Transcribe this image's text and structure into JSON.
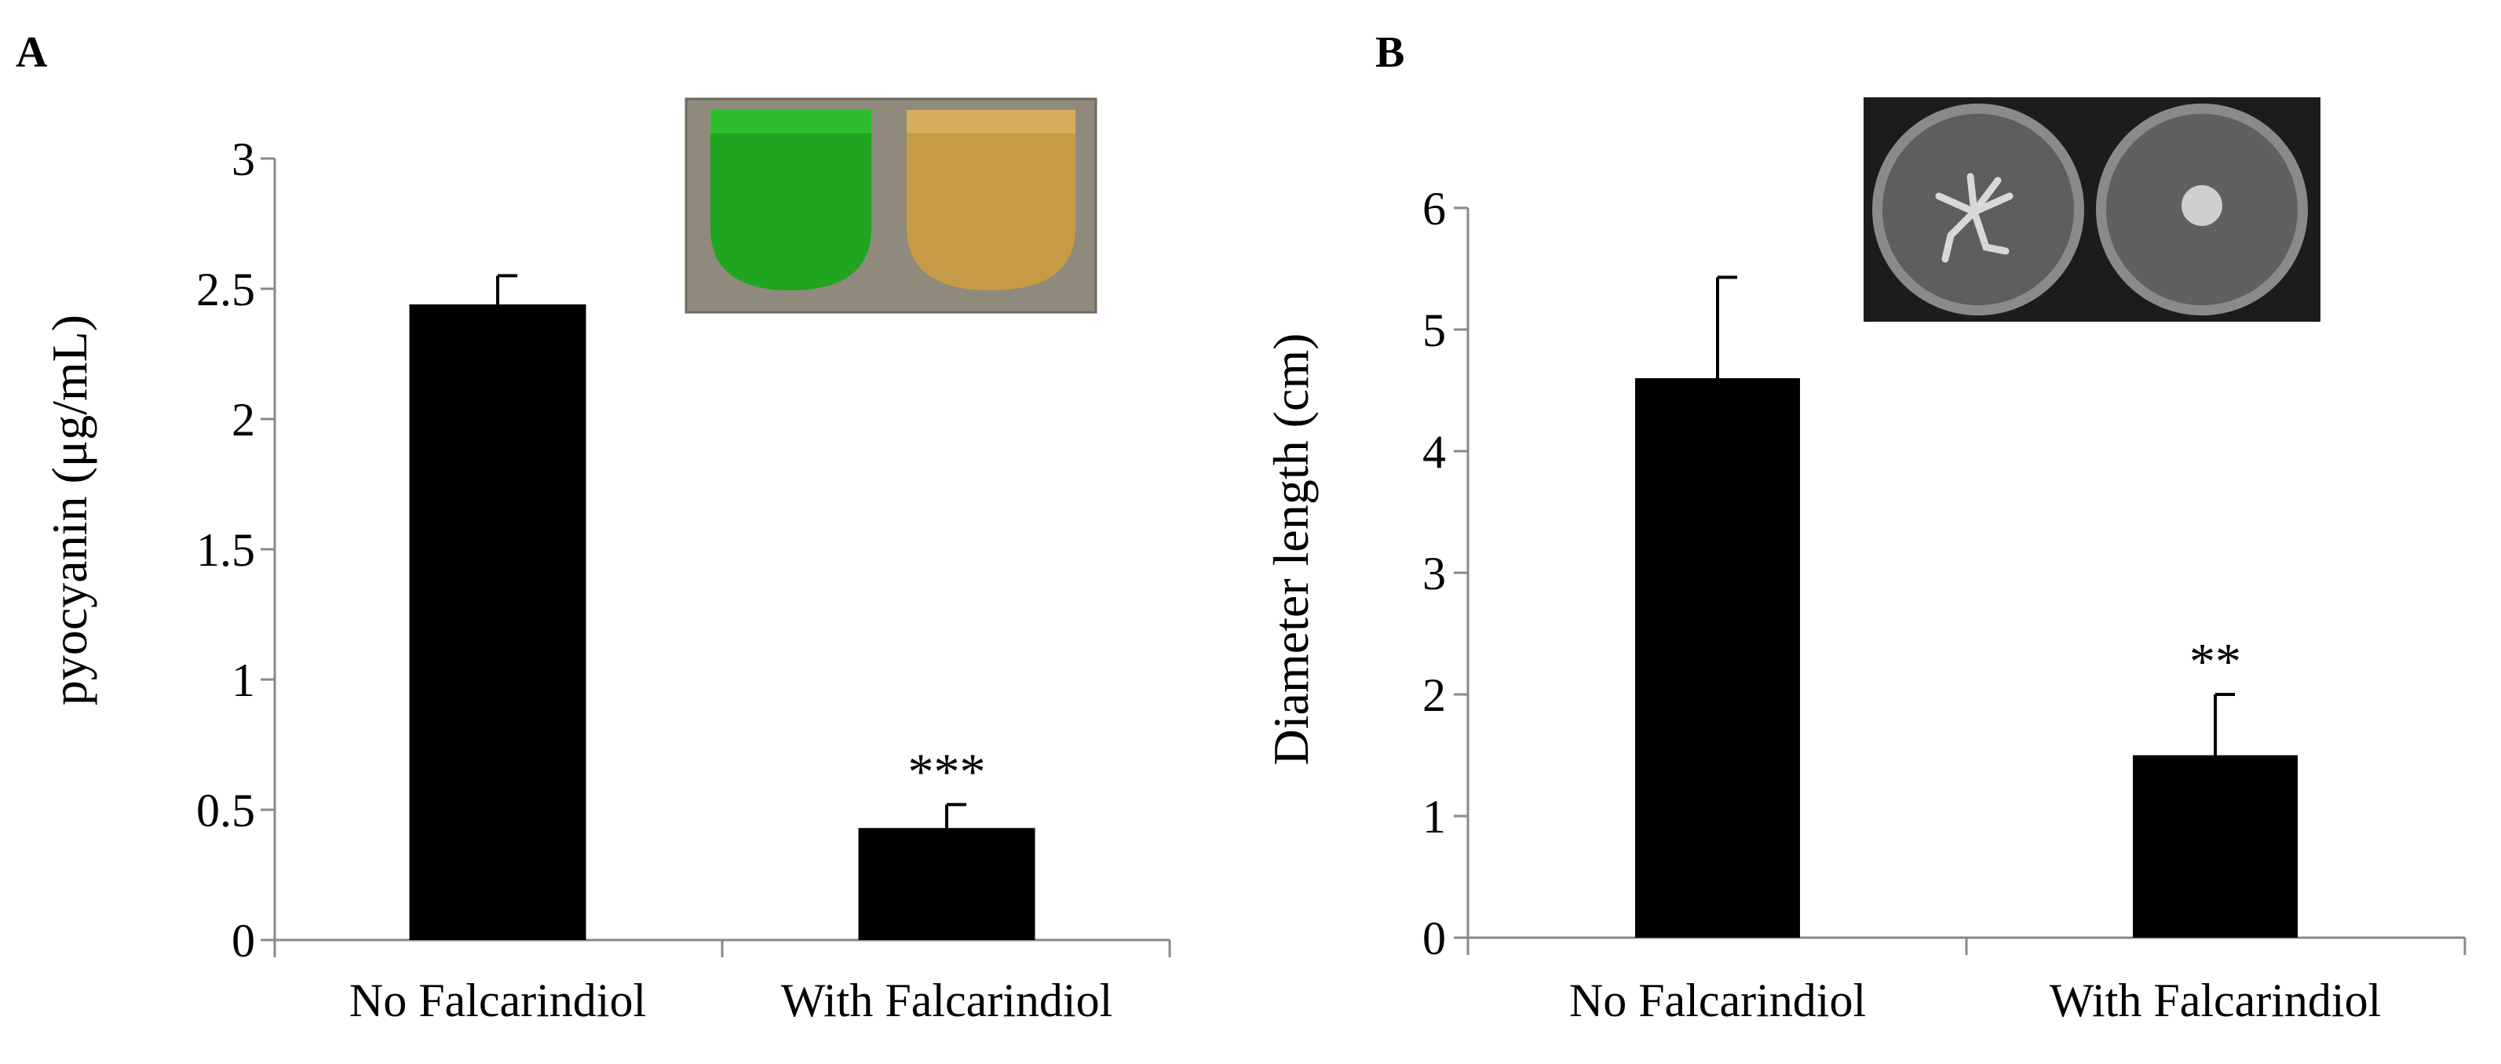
{
  "chart_data": [
    {
      "type": "bar",
      "panel": "A",
      "categories": [
        "No Falcarindiol",
        "With Falcarindiol"
      ],
      "values": [
        2.44,
        0.43
      ],
      "errors": [
        0.11,
        0.09
      ],
      "significance": [
        "",
        "***"
      ],
      "ylabel": "pyocyanin (μg/mL)",
      "ylim": [
        0,
        3
      ],
      "yticks": [
        "0",
        "0.5",
        "1",
        "1.5",
        "2",
        "2.5",
        "3"
      ],
      "inset": "culture tubes: green (left), yellow-brown (right)",
      "colors": {
        "bar": "#000000",
        "tube_left": "#22b022",
        "tube_right": "#c9a24a"
      }
    },
    {
      "type": "bar",
      "panel": "B",
      "categories": [
        "No Falcarindiol",
        "With Falcarindiol"
      ],
      "values": [
        4.6,
        1.5
      ],
      "errors": [
        0.83,
        0.5
      ],
      "significance": [
        "",
        "**"
      ],
      "ylabel": "Diameter length (cm)",
      "ylim": [
        0,
        6
      ],
      "yticks": [
        "0",
        "1",
        "2",
        "3",
        "4",
        "5",
        "6"
      ],
      "inset": "two agar plates with swarming colonies",
      "colors": {
        "bar": "#000000"
      }
    }
  ]
}
